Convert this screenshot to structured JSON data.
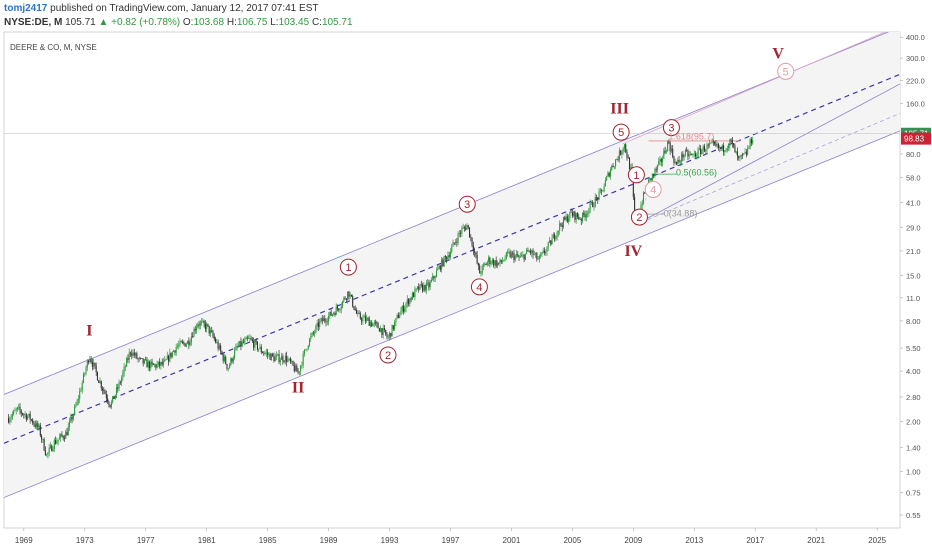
{
  "header": {
    "author": "tomj2417",
    "published_text": "published on TradingView.com, January 12, 2017 07:41 EST",
    "symbol": "NYSE:DE, M",
    "last": "105.71",
    "change": "▲ +0.82 (+0.78%)",
    "o_label": "O:",
    "o": "103.68",
    "h_label": "H:",
    "h": "106.75",
    "l_label": "L:",
    "l": "103.45",
    "c_label": "C:",
    "c": "105.71"
  },
  "chart_data": {
    "type": "candlestick",
    "title": "DEERE & CO, M, NYSE",
    "y_scale": "log",
    "y_ticks": [
      0.55,
      0.75,
      1.0,
      1.4,
      2.0,
      2.8,
      4.0,
      5.5,
      8.0,
      11.0,
      15.0,
      21.0,
      29.0,
      41.0,
      58.0,
      80.0,
      160.0,
      220.0,
      300.0,
      400.0
    ],
    "y_tick_labels": [
      "0.55",
      "0.75",
      "1.00",
      "1.40",
      "2.00",
      "2.80",
      "4.00",
      "5.50",
      "8.00",
      "11.0",
      "15.0",
      "21.0",
      "29.0",
      "41.0",
      "58.0",
      "80.0",
      "160.0",
      "220.0",
      "300.0",
      "400.0"
    ],
    "x_ticks": [
      1969,
      1973,
      1977,
      1981,
      1985,
      1989,
      1993,
      1997,
      2001,
      2005,
      2009,
      2013,
      2017,
      2021,
      2025
    ],
    "x_range": [
      1967.7,
      2026.5
    ],
    "y_range": [
      0.46,
      430
    ],
    "price_tags": [
      {
        "value": 105.71,
        "label": "105.71",
        "color": "#3a8f55"
      },
      {
        "value": 98.83,
        "label": "98.83",
        "color": "#cc2233"
      }
    ],
    "price_path": [
      [
        1968.0,
        2.1
      ],
      [
        1968.6,
        2.35
      ],
      [
        1969.4,
        2.1
      ],
      [
        1970.0,
        1.8
      ],
      [
        1970.5,
        1.25
      ],
      [
        1971.0,
        1.5
      ],
      [
        1971.8,
        1.7
      ],
      [
        1972.5,
        2.6
      ],
      [
        1973.3,
        5.0
      ],
      [
        1973.9,
        3.6
      ],
      [
        1974.7,
        2.5
      ],
      [
        1975.3,
        3.4
      ],
      [
        1976.0,
        5.3
      ],
      [
        1976.6,
        4.6
      ],
      [
        1977.4,
        4.3
      ],
      [
        1978.2,
        4.4
      ],
      [
        1979.0,
        5.6
      ],
      [
        1979.8,
        6.0
      ],
      [
        1980.4,
        7.8
      ],
      [
        1981.0,
        7.4
      ],
      [
        1981.6,
        6.0
      ],
      [
        1982.4,
        4.2
      ],
      [
        1983.0,
        5.6
      ],
      [
        1983.8,
        6.2
      ],
      [
        1984.6,
        5.3
      ],
      [
        1985.4,
        4.8
      ],
      [
        1986.2,
        4.8
      ],
      [
        1987.0,
        3.9
      ],
      [
        1987.6,
        5.8
      ],
      [
        1988.4,
        7.8
      ],
      [
        1989.2,
        8.8
      ],
      [
        1989.8,
        10.0
      ],
      [
        1990.3,
        12.0
      ],
      [
        1990.9,
        8.5
      ],
      [
        1991.6,
        8.0
      ],
      [
        1992.4,
        7.2
      ],
      [
        1992.9,
        6.3
      ],
      [
        1993.6,
        8.7
      ],
      [
        1994.2,
        10.5
      ],
      [
        1994.9,
        12.5
      ],
      [
        1995.6,
        13.0
      ],
      [
        1996.3,
        17.0
      ],
      [
        1997.0,
        21.0
      ],
      [
        1997.6,
        27.0
      ],
      [
        1998.1,
        30.0
      ],
      [
        1998.5,
        22.0
      ],
      [
        1998.9,
        15.5
      ],
      [
        1999.5,
        18.5
      ],
      [
        2000.2,
        17.5
      ],
      [
        2000.8,
        20.0
      ],
      [
        2001.6,
        19.0
      ],
      [
        2002.2,
        21.0
      ],
      [
        2002.8,
        18.5
      ],
      [
        2003.5,
        23.0
      ],
      [
        2004.2,
        30.0
      ],
      [
        2004.9,
        35.0
      ],
      [
        2005.6,
        33.0
      ],
      [
        2006.3,
        40.0
      ],
      [
        2006.9,
        47.0
      ],
      [
        2007.5,
        65.0
      ],
      [
        2008.1,
        80.0
      ],
      [
        2008.4,
        92.0
      ],
      [
        2008.9,
        60.0
      ],
      [
        2009.1,
        30.0
      ],
      [
        2009.4,
        37.0
      ],
      [
        2009.9,
        52.0
      ],
      [
        2010.3,
        60.0
      ],
      [
        2010.8,
        72.0
      ],
      [
        2011.3,
        95.0
      ],
      [
        2011.8,
        68.0
      ],
      [
        2012.3,
        80.0
      ],
      [
        2012.9,
        78.0
      ],
      [
        2013.6,
        86.0
      ],
      [
        2014.2,
        90.0
      ],
      [
        2014.8,
        85.0
      ],
      [
        2015.4,
        95.0
      ],
      [
        2015.9,
        73.0
      ],
      [
        2016.4,
        80.0
      ],
      [
        2016.9,
        105.71
      ]
    ],
    "channels": [
      {
        "x1": 1967.7,
        "y1": 0.7,
        "x2": 2026.5,
        "y2": 110,
        "color": "#8a7fcf"
      },
      {
        "x1": 1967.7,
        "y1": 2.9,
        "x2": 2026.5,
        "y2": 460,
        "color": "#8a7fcf"
      },
      {
        "x1": 1967.7,
        "y1": 1.48,
        "x2": 2026.5,
        "y2": 240,
        "color": "#3b36b0",
        "dash": true
      }
    ],
    "wave_labels": [
      {
        "x": 1973.3,
        "y": 7.0,
        "label": "I",
        "style": "roman"
      },
      {
        "x": 1987.0,
        "y": 3.2,
        "label": "II",
        "style": "roman"
      },
      {
        "x": 2008.1,
        "y": 150,
        "label": "III",
        "style": "roman"
      },
      {
        "x": 2009.0,
        "y": 21.0,
        "label": "IV",
        "style": "roman"
      },
      {
        "x": 2018.5,
        "y": 320,
        "label": "V",
        "style": "roman"
      },
      {
        "x": 1990.3,
        "y": 16.8,
        "label": "1",
        "style": "circle"
      },
      {
        "x": 1992.9,
        "y": 5.0,
        "label": "2",
        "style": "circle"
      },
      {
        "x": 1998.1,
        "y": 40.0,
        "label": "3",
        "style": "circle"
      },
      {
        "x": 1998.9,
        "y": 12.8,
        "label": "4",
        "style": "circle"
      },
      {
        "x": 2008.2,
        "y": 108,
        "label": "5",
        "style": "circle"
      },
      {
        "x": 2009.2,
        "y": 60.0,
        "label": "1",
        "style": "circle"
      },
      {
        "x": 2009.4,
        "y": 33.5,
        "label": "2",
        "style": "circle"
      },
      {
        "x": 2011.5,
        "y": 115,
        "label": "3",
        "style": "circle"
      },
      {
        "x": 2010.3,
        "y": 49.0,
        "label": "4",
        "style": "circle-light"
      },
      {
        "x": 2019.0,
        "y": 250,
        "label": "5",
        "style": "circle-light"
      }
    ],
    "fib_labels": [
      {
        "x": 2011.8,
        "y": 62.0,
        "label": "0.5(60.56)",
        "color": "#3aa34a"
      },
      {
        "x": 2011.0,
        "y": 35.2,
        "label": "0(34.88)",
        "color": "#999999"
      },
      {
        "x": 2011.3,
        "y": 102,
        "label": "1.618(95.7)",
        "color": "#e08a8a"
      }
    ]
  }
}
